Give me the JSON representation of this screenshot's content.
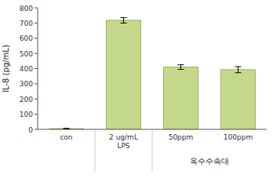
{
  "chart_data": {
    "type": "bar",
    "categories": [
      "con",
      "2 ug/mL\nLPS",
      "50ppm",
      "100ppm"
    ],
    "values": [
      5,
      718,
      410,
      393
    ],
    "errors": [
      2,
      18,
      15,
      20
    ],
    "color": "#c5d98a",
    "ylabel": "IL-8 (pg/mL)",
    "annotations": [
      "옥수수속대"
    ],
    "ylim": [
      0,
      800
    ],
    "yticks": [
      0,
      100,
      200,
      300,
      400,
      500,
      600,
      700,
      800
    ],
    "grid": false
  }
}
